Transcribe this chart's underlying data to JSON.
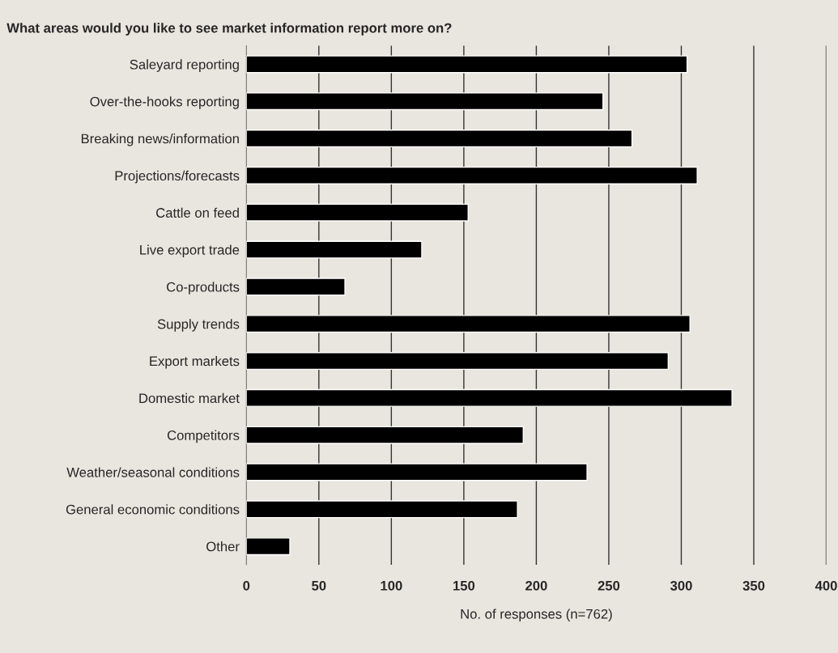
{
  "chart_data": {
    "type": "bar",
    "orientation": "horizontal",
    "title": "What areas would you like to see market information report more on?",
    "xlabel": "No. of responses (n=762)",
    "categories": [
      "Saleyard reporting",
      "Over-the-hooks reporting",
      "Breaking news/information",
      "Projections/forecasts",
      "Cattle on feed",
      "Live export trade",
      "Co-products",
      "Supply trends",
      "Export markets",
      "Domestic market",
      "Competitors",
      "Weather/seasonal conditions",
      "General economic conditions",
      "Other"
    ],
    "values": [
      304,
      246,
      266,
      311,
      153,
      121,
      68,
      306,
      291,
      335,
      191,
      235,
      187,
      30
    ],
    "color": "#000000",
    "xlim": [
      0,
      400
    ],
    "xticks": [
      0,
      50,
      100,
      150,
      200,
      250,
      300,
      350,
      400
    ],
    "grid": "x"
  }
}
